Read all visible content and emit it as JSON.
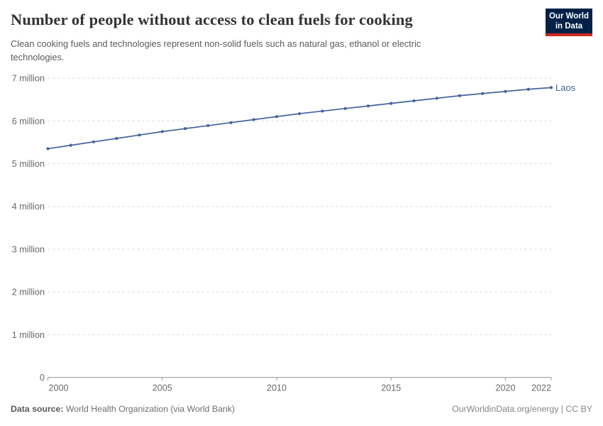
{
  "header": {
    "title": "Number of people without access to clean fuels for cooking",
    "subtitle": "Clean cooking fuels and technologies represent non-solid fuels such as natural gas, ethanol or electric technologies.",
    "logo": {
      "line1": "Our World",
      "line2": "in Data"
    }
  },
  "colors": {
    "series_line": "#44639e",
    "logo_background": "#012147",
    "logo_underline": "#d0281e",
    "gridline": "#d9d9d9",
    "axis_line": "#999999",
    "tick_label": "#696969"
  },
  "chart_data": {
    "type": "line",
    "title": "Number of people without access to clean fuels for cooking",
    "xlabel": "",
    "ylabel": "",
    "xlim": [
      2000,
      2022
    ],
    "ylim_millions": [
      0,
      7
    ],
    "grid": "horizontal-dashed",
    "legend_position": "end-of-line-label",
    "x": [
      2000,
      2001,
      2002,
      2003,
      2004,
      2005,
      2006,
      2007,
      2008,
      2009,
      2010,
      2011,
      2012,
      2013,
      2014,
      2015,
      2016,
      2017,
      2018,
      2019,
      2020,
      2021,
      2022
    ],
    "series": [
      {
        "name": "Laos",
        "color": "#44639e",
        "values_millions": [
          5.35,
          5.43,
          5.51,
          5.59,
          5.67,
          5.75,
          5.82,
          5.89,
          5.96,
          6.03,
          6.1,
          6.17,
          6.23,
          6.29,
          6.35,
          6.41,
          6.47,
          6.53,
          6.59,
          6.64,
          6.69,
          6.74,
          6.78
        ]
      }
    ],
    "x_ticks": [
      2000,
      2005,
      2010,
      2015,
      2020,
      2022
    ],
    "y_ticks": [
      {
        "value_millions": 0,
        "label": "0"
      },
      {
        "value_millions": 1,
        "label": "1 million"
      },
      {
        "value_millions": 2,
        "label": "2 million"
      },
      {
        "value_millions": 3,
        "label": "3 million"
      },
      {
        "value_millions": 4,
        "label": "4 million"
      },
      {
        "value_millions": 5,
        "label": "5 million"
      },
      {
        "value_millions": 6,
        "label": "6 million"
      },
      {
        "value_millions": 7,
        "label": "7 million"
      }
    ]
  },
  "footer": {
    "source_label": "Data source:",
    "source_value": "World Health Organization (via World Bank)",
    "url": "OurWorldinData.org/energy",
    "license_suffix": " | CC BY"
  }
}
